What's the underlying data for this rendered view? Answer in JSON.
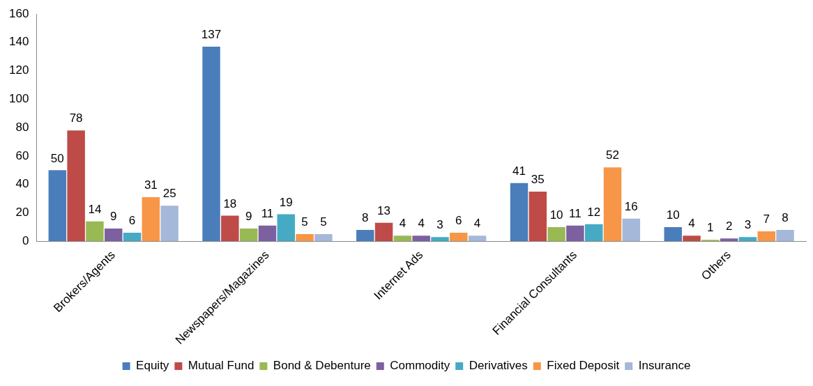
{
  "chart_data": {
    "type": "bar",
    "categories": [
      "Brokers/Agents",
      "Newspapers/Magazines",
      "Internet Ads",
      "Financial Consultants",
      "Others"
    ],
    "series": [
      {
        "name": "Equity",
        "color": "#4a7ebb",
        "values": [
          50,
          137,
          8,
          41,
          10
        ]
      },
      {
        "name": "Mutual Fund",
        "color": "#be4b48",
        "values": [
          78,
          18,
          13,
          35,
          4
        ]
      },
      {
        "name": "Bond & Debenture",
        "color": "#98b954",
        "values": [
          14,
          9,
          4,
          10,
          1
        ]
      },
      {
        "name": "Commodity",
        "color": "#7d60a0",
        "values": [
          9,
          11,
          4,
          11,
          2
        ]
      },
      {
        "name": "Derivatives",
        "color": "#46aac5",
        "values": [
          6,
          19,
          3,
          12,
          3
        ]
      },
      {
        "name": "Fixed Deposit",
        "color": "#f79646",
        "values": [
          31,
          5,
          6,
          52,
          7
        ]
      },
      {
        "name": "Insurance",
        "color": "#a5b8d9",
        "values": [
          25,
          5,
          4,
          16,
          8
        ]
      }
    ],
    "ylim": [
      0,
      160
    ],
    "yticks": [
      0,
      20,
      40,
      60,
      80,
      100,
      120,
      140,
      160
    ],
    "grid": false,
    "legend": "bottom",
    "data_labels": true
  }
}
